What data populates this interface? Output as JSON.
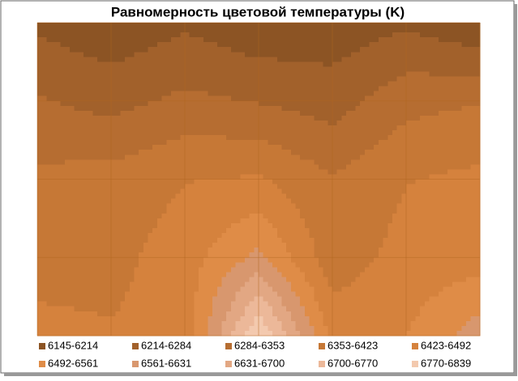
{
  "chart_data": {
    "type": "contour",
    "title": "Равномерность цветовой температуры (K)",
    "z": [
      [
        6200,
        6160,
        6200,
        6160,
        6170,
        6200,
        6150
      ],
      [
        6290,
        6260,
        6300,
        6280,
        6250,
        6330,
        6350
      ],
      [
        6370,
        6380,
        6420,
        6430,
        6360,
        6420,
        6440
      ],
      [
        6400,
        6400,
        6460,
        6580,
        6380,
        6450,
        6460
      ],
      [
        6440,
        6430,
        6450,
        6840,
        6470,
        6490,
        6600
      ]
    ],
    "grid": true,
    "series": [
      {
        "name": "6145-6214",
        "color": "#8c5424"
      },
      {
        "name": "6214-6284",
        "color": "#a2612b"
      },
      {
        "name": "6284-6353",
        "color": "#b66d31"
      },
      {
        "name": "6353-6423",
        "color": "#c67836"
      },
      {
        "name": "6423-6492",
        "color": "#d5823d"
      },
      {
        "name": "6492-6561",
        "color": "#df8c47"
      },
      {
        "name": "6561-6631",
        "color": "#d8976e"
      },
      {
        "name": "6631-6700",
        "color": "#e2a783"
      },
      {
        "name": "6700-6770",
        "color": "#ecb899"
      },
      {
        "name": "6770-6839",
        "color": "#f3c9ae"
      }
    ]
  }
}
